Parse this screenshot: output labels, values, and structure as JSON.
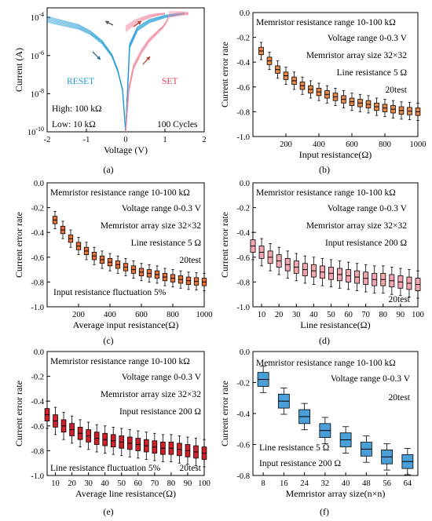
{
  "figure": {
    "panels": [
      {
        "letter": "(a)"
      },
      {
        "letter": "(b)"
      },
      {
        "letter": "(c)"
      },
      {
        "letter": "(d)"
      },
      {
        "letter": "(e)"
      },
      {
        "letter": "(f)"
      }
    ]
  },
  "chart_data": [
    {
      "panel": "(a)",
      "type": "line",
      "xlabel": "Voltage (V)",
      "ylabel": "Current (A)",
      "xlim": [
        -2,
        2
      ],
      "ylim_log10": [
        -10,
        -3.5
      ],
      "y_scale": "log",
      "xticks": [
        "-2",
        "-1",
        "0",
        "1",
        "2"
      ],
      "yticks": [
        "10^{-4}",
        "10^{-6}",
        "10^{-8}",
        "10^{-10}"
      ],
      "annotations": [
        "RESET",
        "SET",
        "High: 100 kΩ",
        "Low: 10 kΩ",
        "100 Cycles"
      ],
      "colors": {
        "reset": "#1f9ad6",
        "set": "#f08ca0"
      },
      "series": [
        {
          "name": "RESET",
          "color": "#1f9ad6",
          "x": [
            -2,
            -1.6,
            -1.2,
            -0.9,
            -0.6,
            -0.35,
            -0.2,
            -0.08,
            0
          ],
          "y_log10": [
            -4.1,
            -4.3,
            -4.5,
            -4.8,
            -5.3,
            -6.0,
            -6.8,
            -7.8,
            -10
          ]
        },
        {
          "name": "RESET",
          "color": "#1f9ad6",
          "x": [
            0,
            0.1,
            0.3,
            0.6,
            1.0,
            1.3,
            1.5
          ],
          "y_log10": [
            -10,
            -5.5,
            -4.6,
            -4.2,
            -3.95,
            -3.85,
            -3.8
          ]
        },
        {
          "name": "SET",
          "color": "#f08ca0",
          "x": [
            0,
            0.08,
            0.2,
            0.4,
            0.6,
            0.8,
            0.95,
            1.05,
            1.1
          ],
          "y_log10": [
            -10,
            -7.8,
            -6.6,
            -5.8,
            -5.2,
            -4.8,
            -4.5,
            -4.2,
            -3.9
          ]
        },
        {
          "name": "SET",
          "color": "#f08ca0",
          "x": [
            1.1,
            1.4,
            1.6
          ],
          "y_log10": [
            -3.85,
            -3.8,
            -3.8
          ]
        },
        {
          "name": "SET",
          "color": "#f08ca0",
          "x": [
            0,
            0.2,
            0.4,
            0.6,
            0.8,
            1.0
          ],
          "y_log10": [
            -4.6,
            -4.3,
            -4.1,
            -3.95,
            -3.85,
            -3.8
          ]
        }
      ]
    },
    {
      "panel": "(b)",
      "type": "box",
      "xlabel": "Input resistance(Ω)",
      "ylabel": "Current error rate",
      "xlim": [
        0,
        1000
      ],
      "ylim": [
        -1.0,
        0.0
      ],
      "xticks": [
        "200",
        "400",
        "600",
        "800",
        "1000"
      ],
      "yticks": [
        "0.0",
        "-0.2",
        "-0.4",
        "-0.6",
        "-0.8",
        "-1.0"
      ],
      "annotations": [
        "Memristor resistance range 10-100 kΩ",
        "Voltage range 0-0.3 V",
        "Memristor array size 32×32",
        "Line resistance 5 Ω",
        "20test"
      ],
      "box_color": "#e8884a",
      "x": [
        50,
        100,
        150,
        200,
        250,
        300,
        350,
        400,
        450,
        500,
        550,
        600,
        650,
        700,
        750,
        800,
        850,
        900,
        950,
        1000
      ],
      "median": [
        -0.31,
        -0.39,
        -0.46,
        -0.51,
        -0.55,
        -0.59,
        -0.62,
        -0.64,
        -0.66,
        -0.68,
        -0.7,
        -0.72,
        -0.73,
        -0.74,
        -0.76,
        -0.77,
        -0.78,
        -0.79,
        -0.795,
        -0.8
      ],
      "spread": 0.03,
      "whisker": 0.07
    },
    {
      "panel": "(c)",
      "type": "box",
      "xlabel": "Average input resistance(Ω)",
      "ylabel": "Current error rate",
      "xlim": [
        0,
        1000
      ],
      "ylim": [
        -1.0,
        0.0
      ],
      "xticks": [
        "200",
        "400",
        "600",
        "800",
        "1000"
      ],
      "yticks": [
        "0.0",
        "-0.2",
        "-0.4",
        "-0.6",
        "-0.8",
        "-1.0"
      ],
      "annotations": [
        "Memristor resistance range 10-100 kΩ",
        "Voltage range 0-0.3 V",
        "Memristor array size 32×32",
        "Line resistance 5 Ω",
        "20test",
        "Input resistance fluctuation 5%"
      ],
      "box_color": "#e8743a",
      "x": [
        50,
        100,
        150,
        200,
        250,
        300,
        350,
        400,
        450,
        500,
        550,
        600,
        650,
        700,
        750,
        800,
        850,
        900,
        950,
        1000
      ],
      "median": [
        -0.3,
        -0.38,
        -0.45,
        -0.51,
        -0.55,
        -0.59,
        -0.62,
        -0.64,
        -0.66,
        -0.68,
        -0.7,
        -0.72,
        -0.73,
        -0.74,
        -0.76,
        -0.77,
        -0.78,
        -0.79,
        -0.795,
        -0.8
      ],
      "spread": 0.03,
      "whisker": 0.07
    },
    {
      "panel": "(d)",
      "type": "box",
      "xlabel": "Line resistance(Ω)",
      "ylabel": "Current error rate",
      "xlim": [
        5,
        100
      ],
      "ylim": [
        -1.0,
        0.0
      ],
      "xticks": [
        "10",
        "20",
        "30",
        "40",
        "50",
        "60",
        "70",
        "80",
        "90",
        "100"
      ],
      "yticks": [
        "0.0",
        "-0.2",
        "-0.4",
        "-0.6",
        "-0.8",
        "-1.0"
      ],
      "annotations": [
        "Memristor resistance range 10-100 kΩ",
        "Voltage range 0-0.3 V",
        "Memristor array size 32×32",
        "Input resistance 200 Ω",
        "20test"
      ],
      "box_color": "#f4a6b0",
      "x": [
        5,
        10,
        15,
        20,
        25,
        30,
        35,
        40,
        45,
        50,
        55,
        60,
        65,
        70,
        75,
        80,
        85,
        90,
        95,
        100
      ],
      "median": [
        -0.51,
        -0.56,
        -0.6,
        -0.63,
        -0.66,
        -0.68,
        -0.7,
        -0.71,
        -0.72,
        -0.73,
        -0.74,
        -0.75,
        -0.76,
        -0.77,
        -0.78,
        -0.78,
        -0.79,
        -0.8,
        -0.81,
        -0.82
      ],
      "spread": 0.05,
      "whisker": 0.11
    },
    {
      "panel": "(e)",
      "type": "box",
      "xlabel": "Average line resistance(Ω)",
      "ylabel": "Current error rate",
      "xlim": [
        5,
        100
      ],
      "ylim": [
        -1.0,
        0.0
      ],
      "xticks": [
        "10",
        "20",
        "30",
        "40",
        "50",
        "60",
        "70",
        "80",
        "90",
        "100"
      ],
      "yticks": [
        "0.0",
        "-0.2",
        "-0.4",
        "-0.6",
        "-0.8",
        "-1.0"
      ],
      "annotations": [
        "Memristor resistance range 10-100 kΩ",
        "Voltage range 0-0.3 V",
        "Memristor array size 32×32",
        "Input resistance 200 Ω",
        "Line resistance fluctuation 5%",
        "20test"
      ],
      "box_color": "#d0202a",
      "x": [
        5,
        10,
        15,
        20,
        25,
        30,
        35,
        40,
        45,
        50,
        55,
        60,
        65,
        70,
        75,
        80,
        85,
        90,
        95,
        100
      ],
      "median": [
        -0.51,
        -0.56,
        -0.6,
        -0.63,
        -0.66,
        -0.68,
        -0.7,
        -0.71,
        -0.72,
        -0.73,
        -0.74,
        -0.75,
        -0.76,
        -0.77,
        -0.78,
        -0.78,
        -0.79,
        -0.8,
        -0.81,
        -0.82
      ],
      "spread": 0.05,
      "whisker": 0.11
    },
    {
      "panel": "(f)",
      "type": "box",
      "xlabel": "Memristor array size(n×n)",
      "ylabel": "Current error rate",
      "xlim": [
        4,
        68
      ],
      "ylim": [
        -0.8,
        0.0
      ],
      "xticks": [
        "8",
        "16",
        "24",
        "32",
        "40",
        "48",
        "56",
        "64"
      ],
      "yticks": [
        "0.0",
        "-0.2",
        "-0.4",
        "-0.6",
        "-0.8"
      ],
      "annotations": [
        "Memristor resistance range 10-100 kΩ",
        "Voltage range 0-0.3 V",
        "20test",
        "Line resistance 5 Ω",
        "Input resistance 200 Ω"
      ],
      "box_color": "#4a9fd8",
      "x": [
        8,
        16,
        24,
        32,
        40,
        48,
        56,
        64
      ],
      "median": [
        -0.18,
        -0.32,
        -0.42,
        -0.51,
        -0.57,
        -0.63,
        -0.68,
        -0.71
      ],
      "spread": 0.045,
      "whisker": 0.085
    }
  ]
}
